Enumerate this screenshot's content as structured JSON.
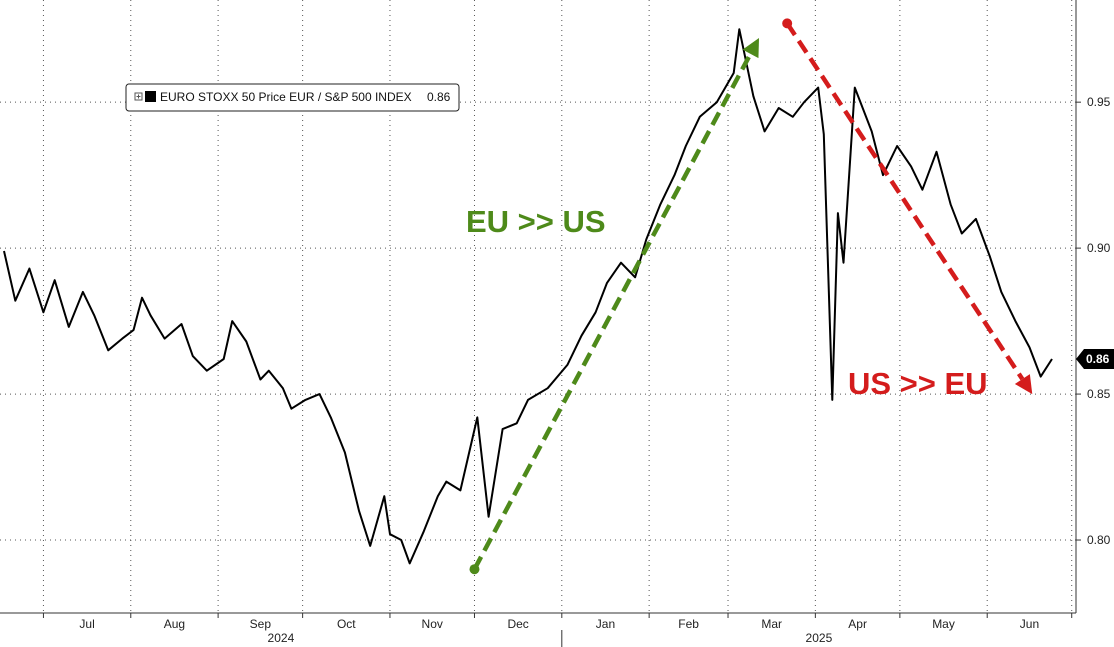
{
  "chart_data": {
    "type": "line",
    "series": [
      {
        "name": "EURO STOXX 50 Price EUR / S&P 500 INDEX",
        "last_label": "0.86",
        "x": [
          "2024-06-17",
          "2024-06-21",
          "2024-06-26",
          "2024-07-01",
          "2024-07-05",
          "2024-07-10",
          "2024-07-15",
          "2024-07-19",
          "2024-07-24",
          "2024-07-29",
          "2024-08-02",
          "2024-08-05",
          "2024-08-08",
          "2024-08-13",
          "2024-08-19",
          "2024-08-23",
          "2024-08-28",
          "2024-09-03",
          "2024-09-06",
          "2024-09-11",
          "2024-09-16",
          "2024-09-19",
          "2024-09-24",
          "2024-09-27",
          "2024-10-02",
          "2024-10-07",
          "2024-10-11",
          "2024-10-16",
          "2024-10-21",
          "2024-10-25",
          "2024-10-30",
          "2024-11-01",
          "2024-11-05",
          "2024-11-08",
          "2024-11-13",
          "2024-11-18",
          "2024-11-21",
          "2024-11-26",
          "2024-12-02",
          "2024-12-06",
          "2024-12-11",
          "2024-12-16",
          "2024-12-20",
          "2024-12-27",
          "2025-01-03",
          "2025-01-08",
          "2025-01-13",
          "2025-01-17",
          "2025-01-22",
          "2025-01-27",
          "2025-01-31",
          "2025-02-05",
          "2025-02-10",
          "2025-02-14",
          "2025-02-19",
          "2025-02-25",
          "2025-03-03",
          "2025-03-05",
          "2025-03-10",
          "2025-03-14",
          "2025-03-19",
          "2025-03-24",
          "2025-03-28",
          "2025-04-02",
          "2025-04-04",
          "2025-04-07",
          "2025-04-09",
          "2025-04-11",
          "2025-04-15",
          "2025-04-21",
          "2025-04-25",
          "2025-04-30",
          "2025-05-05",
          "2025-05-09",
          "2025-05-14",
          "2025-05-19",
          "2025-05-23",
          "2025-05-28",
          "2025-06-02",
          "2025-06-06",
          "2025-06-11",
          "2025-06-16",
          "2025-06-20",
          "2025-06-24"
        ],
        "values": [
          0.899,
          0.882,
          0.893,
          0.878,
          0.889,
          0.873,
          0.885,
          0.877,
          0.865,
          0.869,
          0.872,
          0.883,
          0.877,
          0.869,
          0.874,
          0.863,
          0.858,
          0.862,
          0.875,
          0.868,
          0.855,
          0.858,
          0.852,
          0.845,
          0.848,
          0.85,
          0.842,
          0.83,
          0.81,
          0.798,
          0.815,
          0.802,
          0.8,
          0.792,
          0.803,
          0.815,
          0.82,
          0.817,
          0.842,
          0.808,
          0.838,
          0.84,
          0.848,
          0.852,
          0.86,
          0.87,
          0.878,
          0.888,
          0.895,
          0.89,
          0.903,
          0.915,
          0.925,
          0.935,
          0.945,
          0.95,
          0.96,
          0.975,
          0.952,
          0.94,
          0.948,
          0.945,
          0.95,
          0.955,
          0.939,
          0.848,
          0.912,
          0.895,
          0.955,
          0.94,
          0.925,
          0.935,
          0.928,
          0.92,
          0.933,
          0.915,
          0.905,
          0.91,
          0.897,
          0.885,
          0.875,
          0.866,
          0.856,
          0.862
        ]
      }
    ],
    "xticks": [
      "Jul",
      "Aug",
      "Sep",
      "Oct",
      "Nov",
      "Dec",
      "Jan",
      "Feb",
      "Mar",
      "Apr",
      "May",
      "Jun"
    ],
    "year_labels": [
      "2024",
      "2025"
    ],
    "yticks": [
      "0.80",
      "0.85",
      "0.90",
      "0.95"
    ],
    "ylim": [
      0.775,
      0.985
    ],
    "grid": true,
    "legend": "top-left",
    "last_value_label": "0.86",
    "annotations": [
      {
        "text": "EU >> US",
        "color": "#4e8a1a",
        "arrow_from": {
          "date": "2024-12-01",
          "value": 0.79
        },
        "arrow_to": {
          "date": "2025-03-12",
          "value": 0.972
        }
      },
      {
        "text": "US >> EU",
        "color": "#d41c1c",
        "arrow_from": {
          "date": "2025-03-22",
          "value": 0.977
        },
        "arrow_to": {
          "date": "2025-06-17",
          "value": 0.85
        }
      }
    ]
  }
}
